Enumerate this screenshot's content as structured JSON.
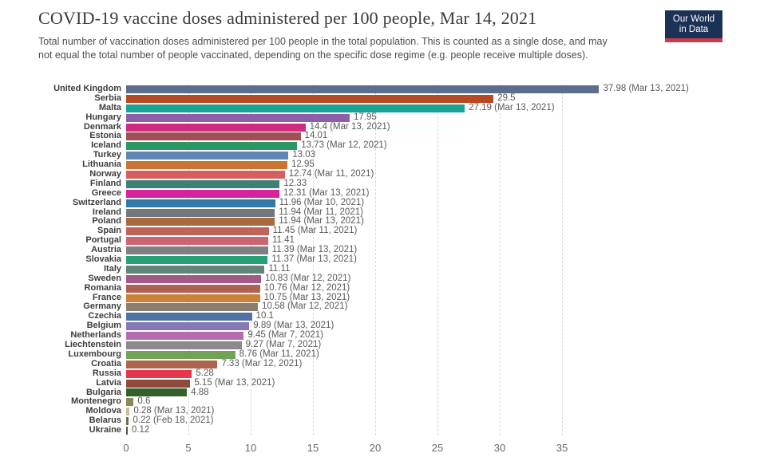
{
  "header": {
    "title": "COVID-19 vaccine doses administered per 100 people, Mar 14, 2021",
    "subtitle": "Total number of vaccination doses administered per 100 people in the total population. This is counted as a single dose, and may not equal the total number of people vaccinated, depending on the specific dose regime (e.g. people receive multiple doses).",
    "logo": {
      "line1": "Our World",
      "line2": "in Data",
      "bg_color": "#1b3155",
      "accent_color": "#d1394a"
    }
  },
  "chart_data": {
    "type": "bar",
    "orientation": "horizontal",
    "title": "COVID-19 vaccine doses administered per 100 people, Mar 14, 2021",
    "xlabel": "",
    "ylabel": "",
    "xlim": [
      0,
      35
    ],
    "x_ticks": [
      0,
      5,
      10,
      15,
      20,
      25,
      30,
      35
    ],
    "grid": "vertical-dashed",
    "gridline_color": "#d9d9d9",
    "bars": [
      {
        "country": "United Kingdom",
        "value": 37.98,
        "label": "37.98 (Mar 13, 2021)",
        "color": "#5b6e8e"
      },
      {
        "country": "Serbia",
        "value": 29.5,
        "label": "29.5",
        "color": "#b54a23"
      },
      {
        "country": "Malta",
        "value": 27.19,
        "label": "27.19 (Mar 13, 2021)",
        "color": "#18a298"
      },
      {
        "country": "Hungary",
        "value": 17.95,
        "label": "17.95",
        "color": "#8e5fa8"
      },
      {
        "country": "Denmark",
        "value": 14.4,
        "label": "14.4 (Mar 13, 2021)",
        "color": "#ce2a80"
      },
      {
        "country": "Estonia",
        "value": 14.01,
        "label": "14.01",
        "color": "#a04f57"
      },
      {
        "country": "Iceland",
        "value": 13.73,
        "label": "13.73 (Mar 12, 2021)",
        "color": "#2b9764"
      },
      {
        "country": "Turkey",
        "value": 13.03,
        "label": "13.03",
        "color": "#6086b4"
      },
      {
        "country": "Lithuania",
        "value": 12.95,
        "label": "12.95",
        "color": "#c97433"
      },
      {
        "country": "Norway",
        "value": 12.74,
        "label": "12.74 (Mar 11, 2021)",
        "color": "#d55f60"
      },
      {
        "country": "Finland",
        "value": 12.33,
        "label": "12.33",
        "color": "#3e8076"
      },
      {
        "country": "Greece",
        "value": 12.31,
        "label": "12.31 (Mar 13, 2021)",
        "color": "#d6239c"
      },
      {
        "country": "Switzerland",
        "value": 11.96,
        "label": "11.96 (Mar 10, 2021)",
        "color": "#3279a8"
      },
      {
        "country": "Ireland",
        "value": 11.94,
        "label": "11.94 (Mar 11, 2021)",
        "color": "#73787c"
      },
      {
        "country": "Poland",
        "value": 11.94,
        "label": "11.94 (Mar 13, 2021)",
        "color": "#a8693f"
      },
      {
        "country": "Spain",
        "value": 11.45,
        "label": "11.45 (Mar 11, 2021)",
        "color": "#c0645a"
      },
      {
        "country": "Portugal",
        "value": 11.41,
        "label": "11.41",
        "color": "#cd6474"
      },
      {
        "country": "Austria",
        "value": 11.39,
        "label": "11.39 (Mar 13, 2021)",
        "color": "#7e8082"
      },
      {
        "country": "Slovakia",
        "value": 11.37,
        "label": "11.37 (Mar 13, 2021)",
        "color": "#27a077"
      },
      {
        "country": "Italy",
        "value": 11.11,
        "label": "11.11",
        "color": "#62857a"
      },
      {
        "country": "Sweden",
        "value": 10.83,
        "label": "10.83 (Mar 12, 2021)",
        "color": "#a15a86"
      },
      {
        "country": "Romania",
        "value": 10.76,
        "label": "10.76 (Mar 12, 2021)",
        "color": "#b06050"
      },
      {
        "country": "France",
        "value": 10.75,
        "label": "10.75 (Mar 13, 2021)",
        "color": "#c8823a"
      },
      {
        "country": "Germany",
        "value": 10.58,
        "label": "10.58 (Mar 12, 2021)",
        "color": "#8d7d6e"
      },
      {
        "country": "Czechia",
        "value": 10.1,
        "label": "10.1",
        "color": "#4d74a2"
      },
      {
        "country": "Belgium",
        "value": 9.89,
        "label": "9.89 (Mar 13, 2021)",
        "color": "#8478b5"
      },
      {
        "country": "Netherlands",
        "value": 9.45,
        "label": "9.45 (Mar 7, 2021)",
        "color": "#b36cb0"
      },
      {
        "country": "Liechtenstein",
        "value": 9.27,
        "label": "9.27 (Mar 7, 2021)",
        "color": "#8d888d"
      },
      {
        "country": "Luxembourg",
        "value": 8.76,
        "label": "8.76 (Mar 11, 2021)",
        "color": "#70a356"
      },
      {
        "country": "Croatia",
        "value": 7.33,
        "label": "7.33 (Mar 12, 2021)",
        "color": "#ac6450"
      },
      {
        "country": "Russia",
        "value": 5.28,
        "label": "5.28",
        "color": "#e4374e"
      },
      {
        "country": "Latvia",
        "value": 5.15,
        "label": "5.15 (Mar 13, 2021)",
        "color": "#91493c"
      },
      {
        "country": "Bulgaria",
        "value": 4.88,
        "label": "4.88",
        "color": "#33602d"
      },
      {
        "country": "Montenegro",
        "value": 0.6,
        "label": "0.6",
        "color": "#8a8c4f"
      },
      {
        "country": "Moldova",
        "value": 0.28,
        "label": "0.28 (Mar 13, 2021)",
        "color": "#c8bf96"
      },
      {
        "country": "Belarus",
        "value": 0.22,
        "label": "0.22 (Feb 18, 2021)",
        "color": "#6e6e48"
      },
      {
        "country": "Ukraine",
        "value": 0.12,
        "label": "0.12",
        "color": "#555555"
      }
    ]
  }
}
